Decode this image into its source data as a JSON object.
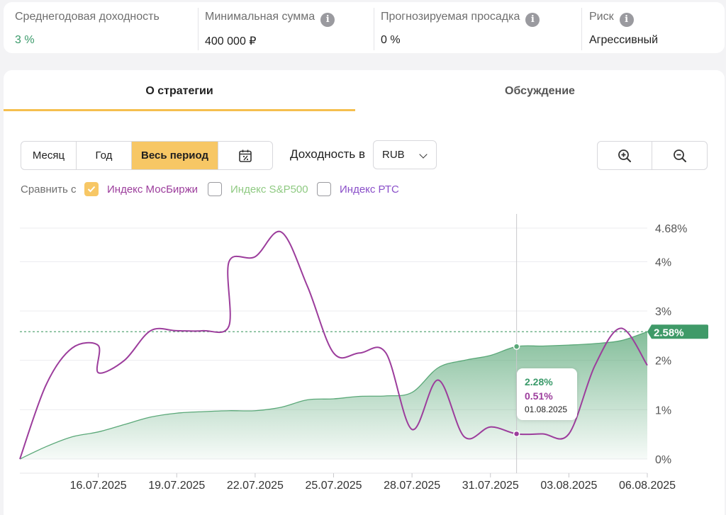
{
  "stats": [
    {
      "label": "Среднегодовая доходность",
      "value": "3 %",
      "info": false
    },
    {
      "label": "Минимальная сумма",
      "value": "400 000 ₽",
      "info": true
    },
    {
      "label": "Прогнозируемая просадка",
      "value": "0 %",
      "info": true
    },
    {
      "label": "Риск",
      "value": "Агрессивный",
      "info": true
    }
  ],
  "tabs": [
    {
      "label": "О стратегии",
      "active": true
    },
    {
      "label": "Обсуждение",
      "active": false
    }
  ],
  "periods": [
    "Месяц",
    "Год",
    "Весь период"
  ],
  "selected_period": "Весь период",
  "yield_label": "Доходность в",
  "currency": "RUB",
  "compare": {
    "label": "Сравнить с",
    "items": [
      {
        "label": "Индекс МосБиржи",
        "checked": true,
        "color": "#9c3d9c"
      },
      {
        "label": "Индекс S&P500",
        "checked": false,
        "color": "#8fca82"
      },
      {
        "label": "Индекс РТС",
        "checked": false,
        "color": "#8a4fc9"
      }
    ]
  },
  "chart_data": {
    "type": "area",
    "x_tick_labels": [
      "16.07.2025",
      "19.07.2025",
      "22.07.2025",
      "25.07.2025",
      "28.07.2025",
      "31.07.2025",
      "03.08.2025",
      "06.08.2025"
    ],
    "y_tick_labels": [
      "0%",
      "1%",
      "2%",
      "3%",
      "4%",
      "4.68%"
    ],
    "ylim": [
      0,
      4.68
    ],
    "x_range": [
      "13.07.2025",
      "06.08.2025"
    ],
    "series": [
      {
        "type": "area",
        "color": "#5aa878",
        "points": [
          [
            "13.07.2025",
            0.0
          ],
          [
            "14.07.2025",
            0.25
          ],
          [
            "15.07.2025",
            0.45
          ],
          [
            "16.07.2025",
            0.55
          ],
          [
            "17.07.2025",
            0.7
          ],
          [
            "18.07.2025",
            0.85
          ],
          [
            "19.07.2025",
            0.93
          ],
          [
            "20.07.2025",
            0.96
          ],
          [
            "21.07.2025",
            0.98
          ],
          [
            "22.07.2025",
            0.98
          ],
          [
            "23.07.2025",
            1.05
          ],
          [
            "24.07.2025",
            1.2
          ],
          [
            "25.07.2025",
            1.22
          ],
          [
            "26.07.2025",
            1.27
          ],
          [
            "27.07.2025",
            1.28
          ],
          [
            "28.07.2025",
            1.35
          ],
          [
            "29.07.2025",
            1.85
          ],
          [
            "30.07.2025",
            2.0
          ],
          [
            "31.07.2025",
            2.1
          ],
          [
            "01.08.2025",
            2.28
          ],
          [
            "02.08.2025",
            2.29
          ],
          [
            "03.08.2025",
            2.31
          ],
          [
            "04.08.2025",
            2.34
          ],
          [
            "05.08.2025",
            2.4
          ],
          [
            "06.08.2025",
            2.58
          ]
        ]
      },
      {
        "name": "Индекс МосБиржи",
        "type": "line",
        "color": "#9c3d9c",
        "points": [
          [
            "13.07.2025",
            0.0
          ],
          [
            "14.07.2025",
            1.5
          ],
          [
            "15.07.2025",
            2.25
          ],
          [
            "16.07.2025",
            2.3
          ],
          [
            "16.07.2025",
            1.75
          ],
          [
            "17.07.2025",
            2.0
          ],
          [
            "18.07.2025",
            2.6
          ],
          [
            "19.07.2025",
            2.6
          ],
          [
            "20.07.2025",
            2.6
          ],
          [
            "21.07.2025",
            2.7
          ],
          [
            "21.07.2025",
            4.0
          ],
          [
            "22.07.2025",
            4.1
          ],
          [
            "23.07.2025",
            4.6
          ],
          [
            "24.07.2025",
            3.5
          ],
          [
            "25.07.2025",
            2.15
          ],
          [
            "26.07.2025",
            2.15
          ],
          [
            "27.07.2025",
            2.15
          ],
          [
            "28.07.2025",
            0.6
          ],
          [
            "29.07.2025",
            1.6
          ],
          [
            "30.07.2025",
            0.45
          ],
          [
            "31.07.2025",
            0.65
          ],
          [
            "01.08.2025",
            0.51
          ],
          [
            "02.08.2025",
            0.51
          ],
          [
            "03.08.2025",
            0.51
          ],
          [
            "04.08.2025",
            1.9
          ],
          [
            "05.08.2025",
            2.65
          ],
          [
            "06.08.2025",
            1.9
          ]
        ]
      }
    ],
    "current_value_label": "2.58%",
    "current_value": 2.58,
    "cursor": {
      "date": "01.08.2025",
      "value_1": "2.28%",
      "value_2": "0.51%"
    }
  }
}
